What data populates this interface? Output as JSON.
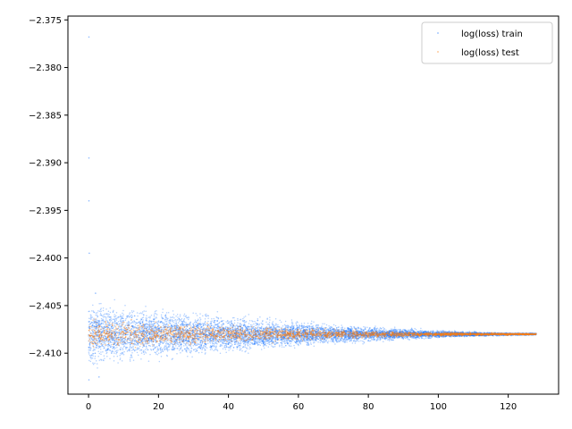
{
  "chart_data": {
    "type": "scatter",
    "title": "",
    "xlabel": "",
    "ylabel": "",
    "xlim": [
      -5.9,
      134.4
    ],
    "ylim": [
      -2.4143,
      -2.3746
    ],
    "x_ticks": [
      0,
      20,
      40,
      60,
      80,
      100,
      120
    ],
    "y_ticks": [
      -2.375,
      -2.38,
      -2.385,
      -2.39,
      -2.395,
      -2.4,
      -2.405,
      -2.41
    ],
    "x_tick_labels": [
      "0",
      "20",
      "40",
      "60",
      "80",
      "100",
      "120"
    ],
    "y_tick_labels": [
      "−2.375",
      "−2.380",
      "−2.385",
      "−2.390",
      "−2.395",
      "−2.400",
      "−2.405",
      "−2.410"
    ],
    "grid": false,
    "legend_position": "top-right",
    "series": [
      {
        "name": "log(loss) train",
        "color": "#1f77ff",
        "marker": "point",
        "x_range": [
          0,
          128
        ],
        "center": -2.408,
        "band_halfwidth_start": 0.0026,
        "band_halfwidth_end": 0.0001,
        "outliers": [
          {
            "x": 0.1,
            "y": -2.3768
          },
          {
            "x": 0.1,
            "y": -2.3895
          },
          {
            "x": 0.1,
            "y": -2.394
          },
          {
            "x": 0.2,
            "y": -2.3995
          },
          {
            "x": 0.1,
            "y": -2.4128
          },
          {
            "x": 2.0,
            "y": -2.4037
          },
          {
            "x": 3.0,
            "y": -2.4125
          }
        ]
      },
      {
        "name": "log(loss) test",
        "color": "#ff7f0e",
        "marker": "point",
        "x_range": [
          0,
          128
        ],
        "center": -2.408,
        "band_halfwidth_start": 0.0012,
        "band_halfwidth_end": 8e-05,
        "outliers": []
      }
    ]
  }
}
